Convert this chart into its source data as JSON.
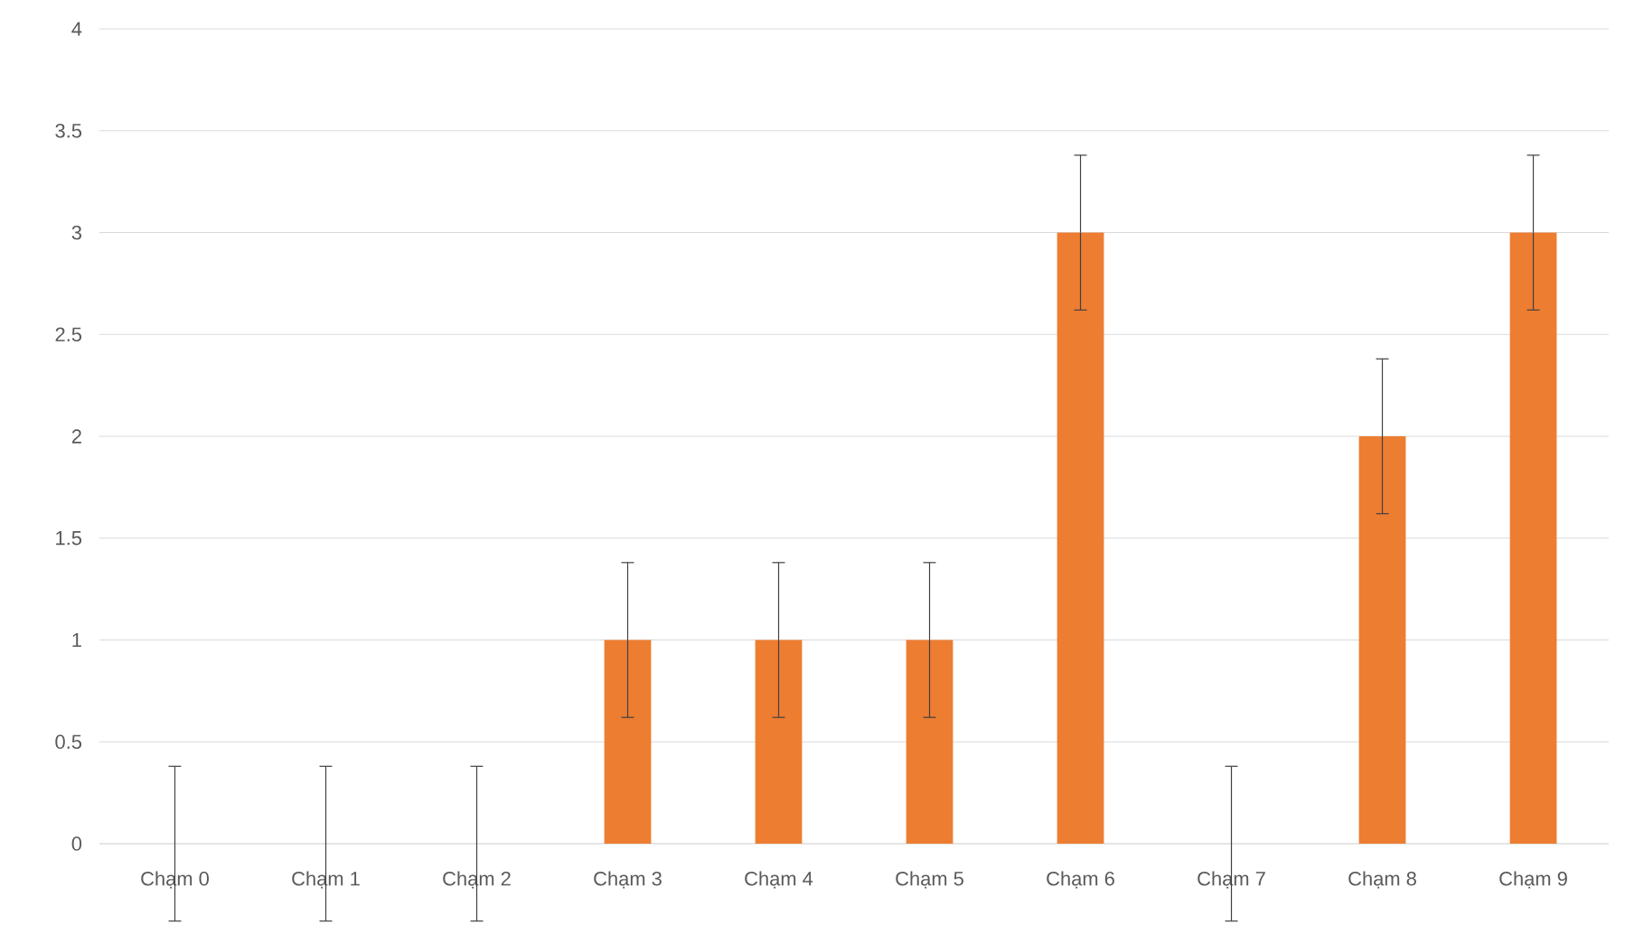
{
  "chart_data": {
    "type": "bar",
    "categories": [
      "Chạm 0",
      "Chạm 1",
      "Chạm 2",
      "Chạm 3",
      "Chạm 4",
      "Chạm 5",
      "Chạm 6",
      "Chạm 7",
      "Chạm 8",
      "Chạm 9"
    ],
    "values": [
      0,
      0,
      0,
      1,
      1,
      1,
      3,
      0,
      2,
      3
    ],
    "errors": [
      0.38,
      0.38,
      0.38,
      0.38,
      0.38,
      0.38,
      0.38,
      0.38,
      0.38,
      0.38
    ],
    "color": "#ed7d31",
    "ylim": [
      0,
      4
    ],
    "yticks": [
      0,
      0.5,
      1,
      1.5,
      2,
      2.5,
      3,
      3.5,
      4
    ],
    "grid": "y"
  }
}
